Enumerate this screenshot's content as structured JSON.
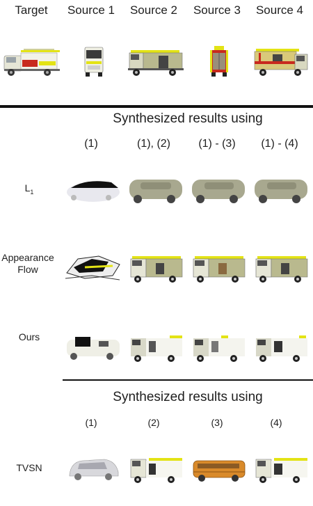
{
  "header": {
    "columns": [
      "Target",
      "Source 1",
      "Source 2",
      "Source 3",
      "Source 4"
    ]
  },
  "section1": {
    "title": "Synthesized results using",
    "subheads": [
      "(1)",
      "(1), (2)",
      "(1) - (3)",
      "(1) - (4)"
    ],
    "rows": [
      {
        "label": "L",
        "label_sub": "1",
        "kind": "blur"
      },
      {
        "label_line1": "Appearance",
        "label_line2": "Flow",
        "kind": "flow"
      },
      {
        "label": "Ours",
        "kind": "ours"
      }
    ]
  },
  "section2": {
    "title": "Synthesized results using",
    "subheads": [
      "(1)",
      "(2)",
      "(3)",
      "(4)"
    ],
    "rows": [
      {
        "label": "TVSN",
        "kind": "tvsn"
      }
    ]
  },
  "colors": {
    "truck_body": "#b9b98e",
    "truck_accent": "#e3e315",
    "stripe_red": "#c8291e",
    "bus_orange": "#d98a2a"
  }
}
